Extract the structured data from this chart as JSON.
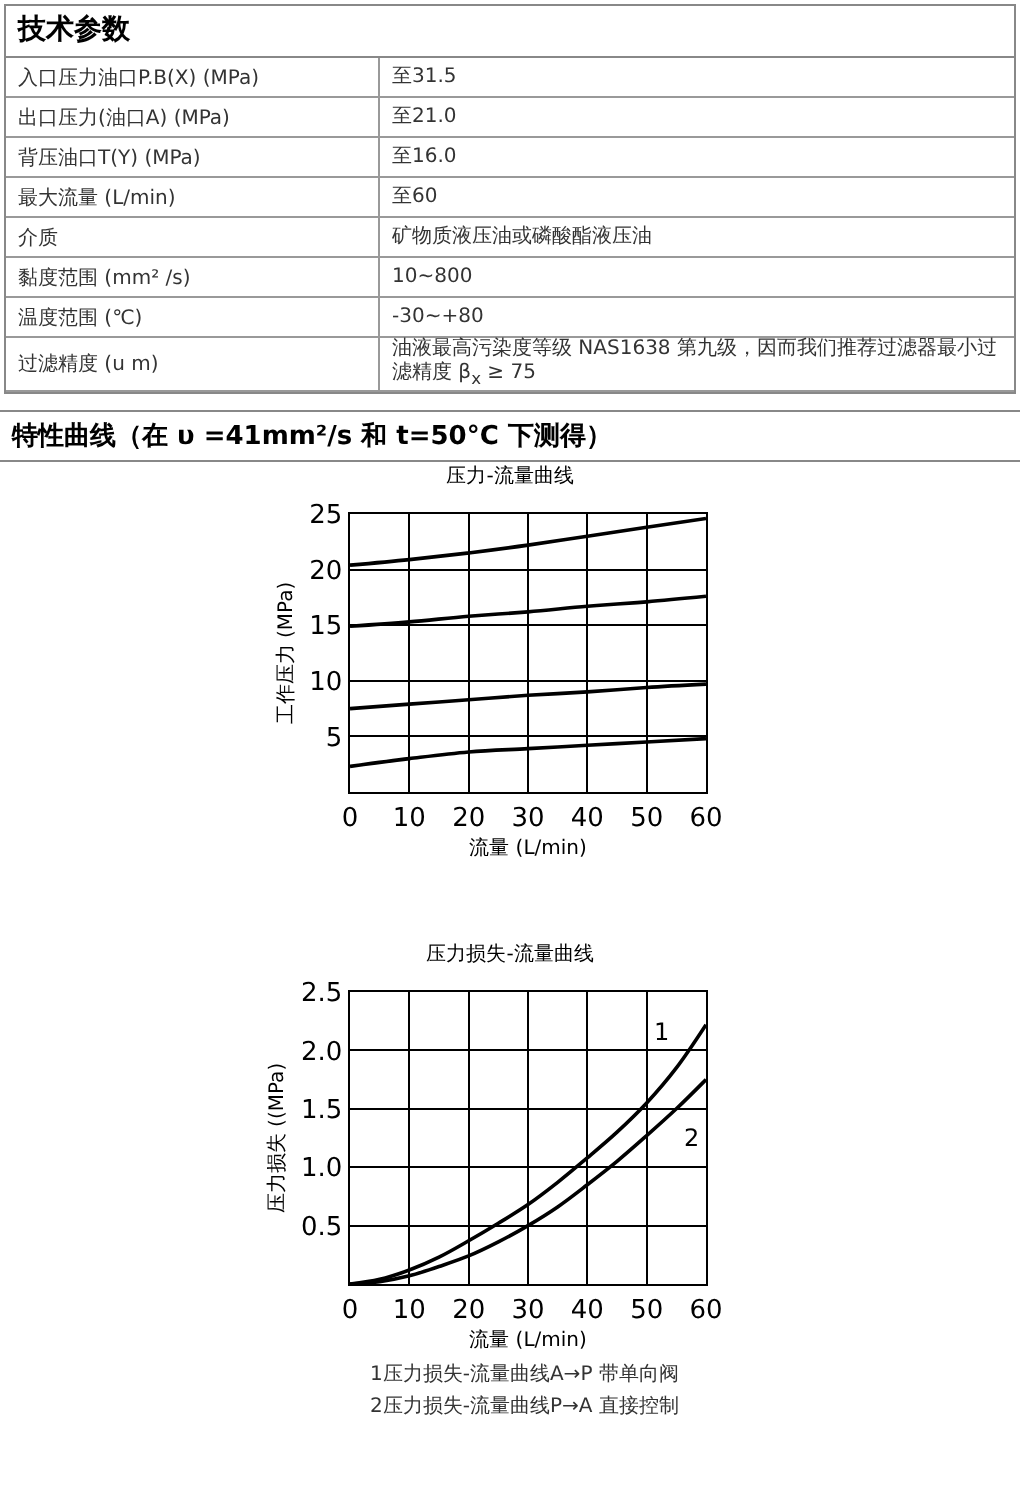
{
  "chart_data": [
    {
      "type": "other",
      "title": "技术参数",
      "annotations": [
        "入口压力油口P.B(X) (MPa)",
        "至31.5",
        "出口压力(油口A) (MPa)",
        "至21.0",
        "背压油口T(Y) (MPa)",
        "至16.0",
        "最大流量 (L/min)",
        "至60",
        "介质",
        "矿物质液压油或磷酸酯液压油",
        "黏度范围 (mm² /s)",
        "10~800",
        "温度范围 (℃)",
        "-30~+80",
        "过滤精度 (u m)",
        "油液最高污染度等级 NAS1638 第九级，因而我们推荐过滤器最小过滤精度 β$_{x}$ ≥ 75"
      ]
    },
    {
      "type": "line",
      "subtitle": "特性曲线（在 υ =41mm²/s 和 t=50°C 下测得）",
      "title": "压力-流量曲线",
      "xlabel": "流量 (L/min)",
      "ylabel": "工作压力 (MPa)",
      "x": [
        0,
        10,
        20,
        30,
        40,
        50,
        60
      ],
      "xlim": [
        0,
        60
      ],
      "xticks": [
        0,
        10,
        20,
        30,
        40,
        50,
        60
      ],
      "ylim": [
        0,
        25
      ],
      "yticks": [
        5,
        10,
        15,
        20,
        25
      ],
      "grid": true,
      "series": [
        {
          "color": "#000000",
          "values": [
            20.4,
            20.9,
            21.5,
            22.2,
            23.0,
            23.8,
            24.6
          ]
        },
        {
          "color": "#000000",
          "values": [
            14.9,
            15.3,
            15.8,
            16.2,
            16.7,
            17.1,
            17.6
          ]
        },
        {
          "color": "#000000",
          "values": [
            7.5,
            7.9,
            8.3,
            8.7,
            9.0,
            9.4,
            9.7
          ]
        },
        {
          "color": "#000000",
          "values": [
            2.3,
            3.0,
            3.6,
            3.9,
            4.2,
            4.5,
            4.8
          ]
        }
      ]
    },
    {
      "type": "line",
      "title": "压力损失-流量曲线",
      "xlabel": "流量 (L/min)",
      "ylabel": "压力损失 ((MPa)",
      "x": [
        0,
        5,
        10,
        15,
        20,
        25,
        30,
        35,
        40,
        45,
        50,
        55,
        60
      ],
      "xlim": [
        0,
        60
      ],
      "xticks": [
        0,
        10,
        20,
        30,
        40,
        50,
        60
      ],
      "ylim": [
        0,
        2.5
      ],
      "yticks": [
        0.5,
        {
          "value": 1,
          "label": "1.0"
        },
        1.5,
        {
          "value": 2,
          "label": "2.0"
        },
        2.5
      ],
      "grid": true,
      "annotations": [
        "1压力损失-流量曲线A→P 带单向阀",
        "2压力损失-流量曲线P→A 直接控制"
      ],
      "series": [
        {
          "name": "1",
          "color": "#000000",
          "values": [
            0,
            0.04,
            0.12,
            0.23,
            0.37,
            0.52,
            0.68,
            0.87,
            1.08,
            1.3,
            1.55,
            1.85,
            2.22
          ]
        },
        {
          "name": "2",
          "color": "#000000",
          "values": [
            0,
            0.02,
            0.07,
            0.15,
            0.24,
            0.36,
            0.5,
            0.66,
            0.85,
            1.05,
            1.27,
            1.5,
            1.75
          ]
        }
      ]
    }
  ]
}
